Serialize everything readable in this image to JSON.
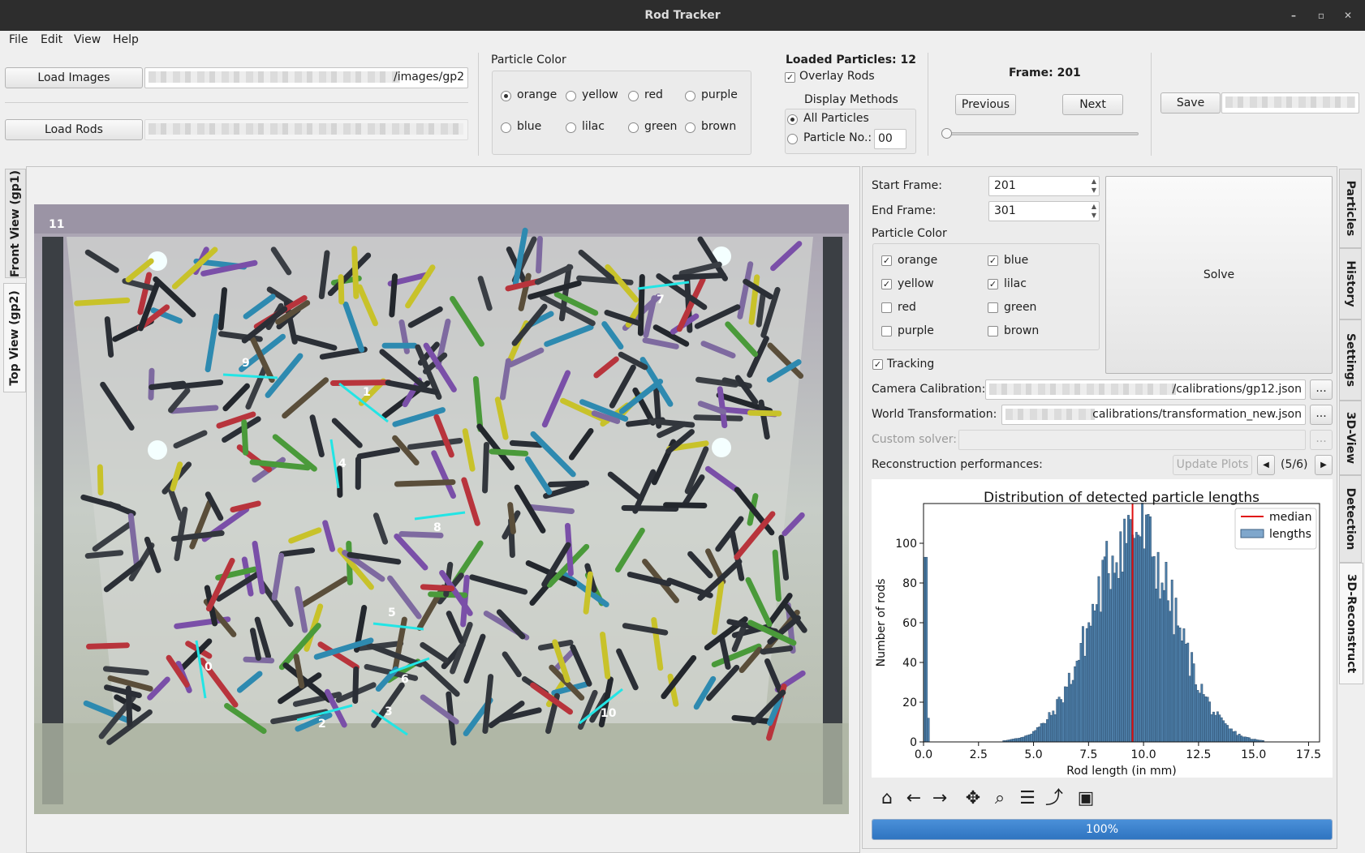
{
  "window": {
    "title": "Rod Tracker"
  },
  "menu": [
    "File",
    "Edit",
    "View",
    "Help"
  ],
  "toolbar": {
    "load_images": "Load Images",
    "images_path": "/images/gp2",
    "load_rods": "Load Rods",
    "particle_color_title": "Particle Color",
    "colors": [
      "orange",
      "yellow",
      "red",
      "purple",
      "blue",
      "lilac",
      "green",
      "brown"
    ],
    "selected_color": "orange",
    "loaded_particles": "Loaded Particles: 12",
    "overlay_rods": "Overlay Rods",
    "display_methods": "Display Methods",
    "all_particles": "All Particles",
    "particle_no": "Particle No.:",
    "particle_no_value": "00",
    "frame": "Frame: 201",
    "previous": "Previous",
    "next": "Next",
    "save": "Save"
  },
  "left_tabs": {
    "front": "Front View (gp1)",
    "top": "Top View (gp2)"
  },
  "image": {
    "frame_label": "11",
    "rod_labels": [
      "0",
      "1",
      "2",
      "3",
      "4",
      "5",
      "6",
      "7",
      "8",
      "9",
      "10"
    ]
  },
  "right_tabs": [
    "Particles",
    "History",
    "Settings",
    "3D-View",
    "Detection",
    "3D-Reconstruct"
  ],
  "recon": {
    "start_frame_label": "Start Frame:",
    "start_frame": "201",
    "end_frame_label": "End Frame:",
    "end_frame": "301",
    "particle_color_label": "Particle Color",
    "color_checks": [
      {
        "name": "orange",
        "checked": true
      },
      {
        "name": "blue",
        "checked": true
      },
      {
        "name": "yellow",
        "checked": true
      },
      {
        "name": "lilac",
        "checked": true
      },
      {
        "name": "red",
        "checked": false
      },
      {
        "name": "green",
        "checked": false
      },
      {
        "name": "purple",
        "checked": false
      },
      {
        "name": "brown",
        "checked": false
      }
    ],
    "solve": "Solve",
    "tracking": "Tracking",
    "camera_calibration_label": "Camera Calibration:",
    "camera_calibration_value": "/calibrations/gp12.json",
    "world_transformation_label": "World Transformation:",
    "world_transformation_value": "calibrations/transformation_new.json",
    "custom_solver_label": "Custom solver:",
    "browse": "...",
    "performances_label": "Reconstruction performances:",
    "update_plots": "Update Plots",
    "plot_counter": "(5/6)",
    "progress_text": "100%",
    "progress_value": 1.0
  },
  "chart_data": {
    "type": "bar",
    "title": "Distribution of detected particle lengths",
    "xlabel": "Rod length (in mm)",
    "ylabel": "Number of rods",
    "xlim": [
      0,
      18
    ],
    "ylim": [
      0,
      120
    ],
    "xticks": [
      "0.0",
      "2.5",
      "5.0",
      "7.5",
      "10.0",
      "12.5",
      "15.0",
      "17.5"
    ],
    "yticks": [
      "0",
      "20",
      "40",
      "60",
      "80",
      "100"
    ],
    "median": 9.5,
    "legend": [
      "median",
      "lengths"
    ],
    "legend_position": "top-right",
    "colors": {
      "bars": "#4d7ea8",
      "median": "#e01010"
    }
  }
}
